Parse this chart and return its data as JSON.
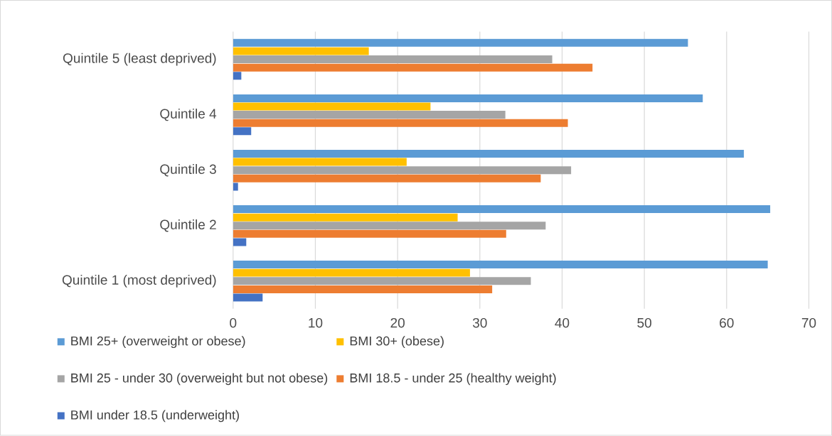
{
  "chart_data": {
    "type": "bar",
    "orientation": "horizontal",
    "categories": [
      "Quintile 5 (least deprived)",
      "Quintile 4",
      "Quintile 3",
      "Quintile 2",
      "Quintile 1 (most deprived)"
    ],
    "series": [
      {
        "name": "BMI 25+ (overweight or obese)",
        "color": "#5b9bd5",
        "values": [
          55.3,
          57.1,
          62.1,
          65.3,
          65.0
        ]
      },
      {
        "name": "BMI 30+ (obese)",
        "color": "#ffc000",
        "values": [
          16.5,
          24.0,
          21.1,
          27.3,
          28.8
        ]
      },
      {
        "name": "BMI 25 - under 30 (overweight but not obese)",
        "color": "#a5a5a5",
        "values": [
          38.8,
          33.1,
          41.1,
          38.0,
          36.2
        ]
      },
      {
        "name": "BMI 18.5 - under 25 (healthy weight)",
        "color": "#ed7d31",
        "values": [
          43.7,
          40.7,
          37.4,
          33.2,
          31.5
        ]
      },
      {
        "name": "BMI under 18.5 (underweight)",
        "color": "#4472c4",
        "values": [
          1.0,
          2.2,
          0.6,
          1.6,
          3.6
        ]
      }
    ],
    "xlim": [
      0,
      70
    ],
    "xticks": [
      0,
      10,
      20,
      30,
      40,
      50,
      60,
      70
    ],
    "grid": "x",
    "legend": "bottom"
  }
}
